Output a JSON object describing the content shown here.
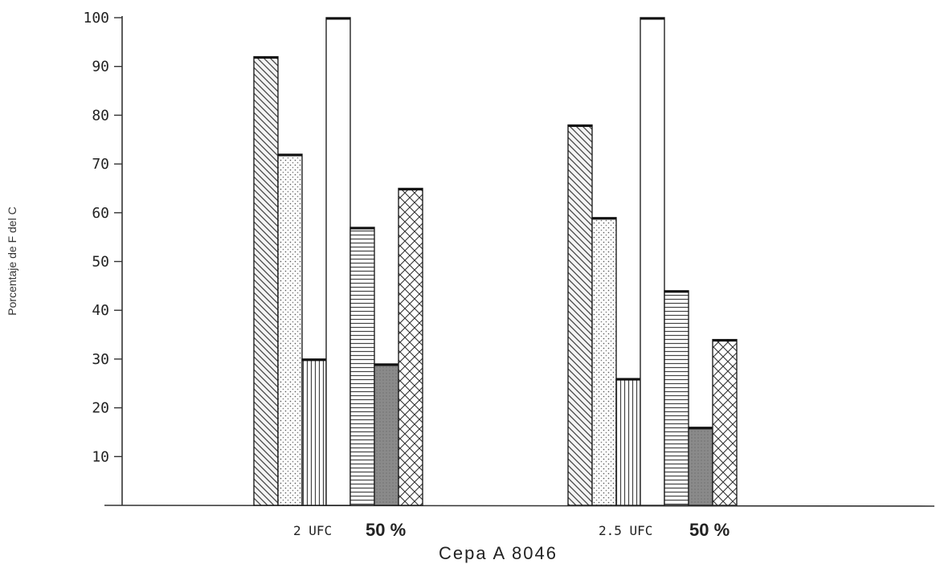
{
  "chart_data": {
    "type": "bar",
    "title": "",
    "xlabel": "Cepa A 8046",
    "ylabel": "Porcentaje de F del C",
    "ylim": [
      0,
      100
    ],
    "yticks": [
      "10",
      "20",
      "30",
      "40",
      "50",
      "60",
      "70",
      "80",
      "90",
      "100"
    ],
    "grid": false,
    "legend": "none",
    "categories": [
      {
        "name": "2 UFC",
        "pct": "50 %"
      },
      {
        "name": "2.5 UFC",
        "pct": "50 %"
      }
    ],
    "series": [
      {
        "pattern": "diagonal",
        "values": [
          92,
          78
        ]
      },
      {
        "pattern": "dots",
        "values": [
          72,
          59
        ]
      },
      {
        "pattern": "vertical",
        "values": [
          30,
          26
        ]
      },
      {
        "pattern": "blank",
        "values": [
          100,
          100
        ]
      },
      {
        "pattern": "horizontal",
        "values": [
          57,
          44
        ]
      },
      {
        "pattern": "solid-gray",
        "values": [
          29,
          16
        ]
      },
      {
        "pattern": "crosshatch",
        "values": [
          65,
          34
        ]
      }
    ]
  }
}
